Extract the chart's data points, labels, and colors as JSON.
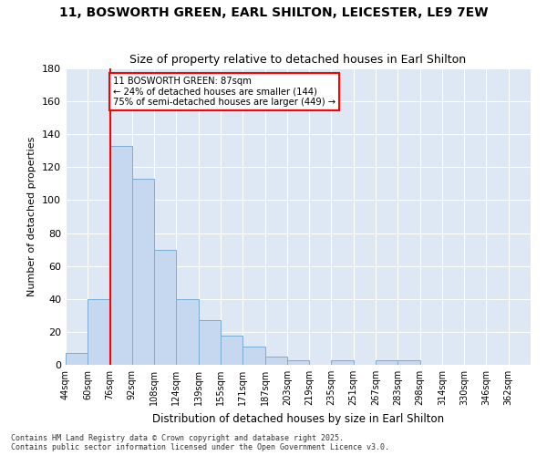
{
  "title_line1": "11, BOSWORTH GREEN, EARL SHILTON, LEICESTER, LE9 7EW",
  "title_line2": "Size of property relative to detached houses in Earl Shilton",
  "xlabel": "Distribution of detached houses by size in Earl Shilton",
  "ylabel": "Number of detached properties",
  "bin_labels": [
    "44sqm",
    "60sqm",
    "76sqm",
    "92sqm",
    "108sqm",
    "124sqm",
    "139sqm",
    "155sqm",
    "171sqm",
    "187sqm",
    "203sqm",
    "219sqm",
    "235sqm",
    "251sqm",
    "267sqm",
    "283sqm",
    "298sqm",
    "314sqm",
    "330sqm",
    "346sqm",
    "362sqm"
  ],
  "bar_values": [
    7,
    40,
    133,
    113,
    70,
    40,
    27,
    18,
    11,
    5,
    3,
    0,
    3,
    0,
    3,
    3,
    0,
    0,
    0,
    0
  ],
  "bar_color": "#c5d8f0",
  "bar_edge_color": "#7aadd4",
  "vline_color": "red",
  "annotation_text": "11 BOSWORTH GREEN: 87sqm\n← 24% of detached houses are smaller (144)\n75% of semi-detached houses are larger (449) →",
  "annotation_box_color": "white",
  "annotation_box_edge": "red",
  "ylim": [
    0,
    180
  ],
  "yticks": [
    0,
    20,
    40,
    60,
    80,
    100,
    120,
    140,
    160,
    180
  ],
  "background_color": "#dde8f4",
  "grid_color": "white",
  "footer": "Contains HM Land Registry data © Crown copyright and database right 2025.\nContains public sector information licensed under the Open Government Licence v3.0.",
  "title_fontsize": 10,
  "subtitle_fontsize": 9
}
